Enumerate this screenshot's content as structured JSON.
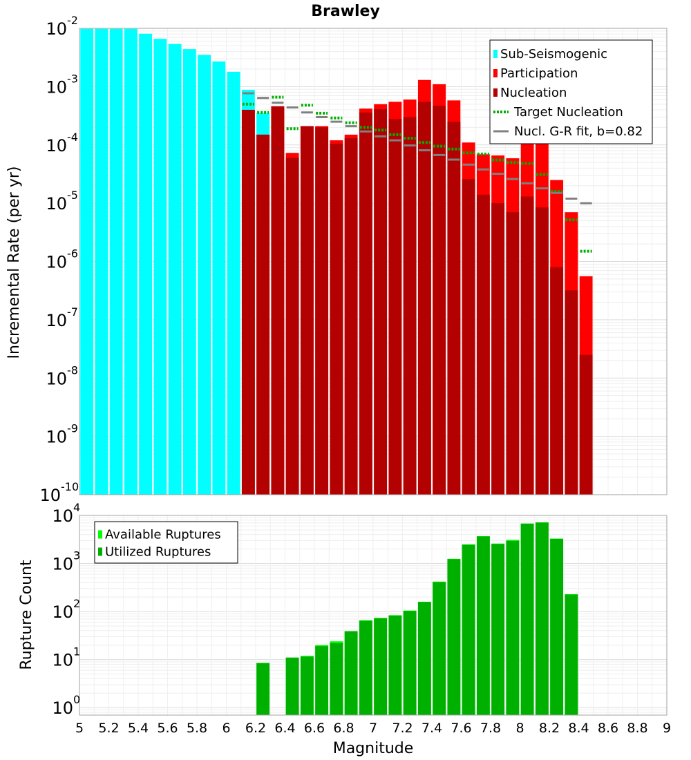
{
  "chart_data": [
    {
      "type": "bar",
      "title": "Brawley",
      "xlabel": "",
      "ylabel": "Incremental Rate (per yr)",
      "xlim": [
        5,
        9
      ],
      "ylim": [
        1e-10,
        0.01
      ],
      "yscale": "log",
      "grid": true,
      "legend_placement": "top-right",
      "x_ticks": [
        "5",
        "5.2",
        "5.4",
        "5.6",
        "5.8",
        "6",
        "6.2",
        "6.4",
        "6.6",
        "6.8",
        "7",
        "7.2",
        "7.4",
        "7.6",
        "7.8",
        "8",
        "8.2",
        "8.4",
        "8.6",
        "8.8",
        "9"
      ],
      "y_ticks": [
        {
          "base": "10",
          "exp": "-10"
        },
        {
          "base": "10",
          "exp": "-9"
        },
        {
          "base": "10",
          "exp": "-8"
        },
        {
          "base": "10",
          "exp": "-7"
        },
        {
          "base": "10",
          "exp": "-6"
        },
        {
          "base": "10",
          "exp": "-5"
        },
        {
          "base": "10",
          "exp": "-4"
        },
        {
          "base": "10",
          "exp": "-3"
        },
        {
          "base": "10",
          "exp": "-2"
        }
      ],
      "series": [
        {
          "name": "Sub-Seismogenic",
          "color": "#00ffff",
          "kind": "bar",
          "x": [
            5.05,
            5.15,
            5.25,
            5.35,
            5.45,
            5.55,
            5.65,
            5.75,
            5.85,
            5.95,
            6.05,
            6.15,
            6.25
          ],
          "values": [
            0.0098,
            0.0098,
            0.0098,
            0.0098,
            0.0081,
            0.0066,
            0.0054,
            0.0044,
            0.0035,
            0.0027,
            0.0018,
            0.00088,
            0.00035
          ]
        },
        {
          "name": "Participation",
          "color": "#ff0000",
          "kind": "bar",
          "x": [
            6.15,
            6.25,
            6.35,
            6.45,
            6.55,
            6.65,
            6.75,
            6.85,
            6.95,
            7.05,
            7.15,
            7.25,
            7.35,
            7.45,
            7.55,
            7.65,
            7.75,
            7.85,
            7.95,
            8.05,
            8.15,
            8.25,
            8.35,
            8.45
          ],
          "values": [
            0.0004,
            0.00015,
            0.00046,
            7.3e-05,
            0.00021,
            0.00021,
            0.00012,
            0.00015,
            0.00042,
            0.0005,
            0.00055,
            0.0006,
            0.0013,
            0.0011,
            0.00058,
            0.00011,
            6.9e-05,
            6.6e-05,
            5.9e-05,
            0.00014,
            0.00011,
            2.5e-05,
            7e-06,
            5.6e-07
          ]
        },
        {
          "name": "Nucleation",
          "color": "#b30000",
          "kind": "bar",
          "x": [
            6.15,
            6.25,
            6.35,
            6.45,
            6.55,
            6.65,
            6.75,
            6.85,
            6.95,
            7.05,
            7.15,
            7.25,
            7.35,
            7.45,
            7.55,
            7.65,
            7.75,
            7.85,
            7.95,
            8.05,
            8.15,
            8.25,
            8.35,
            8.45
          ],
          "values": [
            0.0004,
            0.00015,
            0.00046,
            6e-05,
            0.00021,
            0.0002,
            0.000105,
            0.00013,
            0.00036,
            0.00041,
            0.00028,
            0.0003,
            0.00055,
            0.00047,
            0.00025,
            2.6e-05,
            1.4e-05,
            1e-05,
            7e-06,
            1.3e-05,
            8.5e-06,
            8e-07,
            3.2e-07,
            2.5e-08
          ]
        },
        {
          "name": "Target Nucleation",
          "color": "#00b000",
          "kind": "dotted-step",
          "x": [
            6.15,
            6.25,
            6.35,
            6.45,
            6.55,
            6.65,
            6.75,
            6.85,
            6.95,
            7.05,
            7.15,
            7.25,
            7.35,
            7.45,
            7.55,
            7.65,
            7.75,
            7.85,
            7.95,
            8.05,
            8.15,
            8.25,
            8.35,
            8.45
          ],
          "values": [
            0.0005,
            0.00036,
            0.00066,
            0.00019,
            0.00048,
            0.00035,
            0.00029,
            0.00024,
            0.0002,
            0.00018,
            0.00015,
            0.00013,
            0.00011,
            9.5e-05,
            8.5e-05,
            7.3e-05,
            7e-05,
            5.5e-05,
            5e-05,
            4.8e-05,
            3.1e-05,
            1.6e-05,
            5.2e-06,
            1.5e-06
          ]
        },
        {
          "name": "Nucl. G-R fit, b=0.82",
          "color": "#808080",
          "kind": "step",
          "x": [
            6.15,
            6.25,
            6.35,
            6.45,
            6.55,
            6.65,
            6.75,
            6.85,
            6.95,
            7.05,
            7.15,
            7.25,
            7.35,
            7.45,
            7.55,
            7.65,
            7.75,
            7.85,
            7.95,
            8.05,
            8.15,
            8.25,
            8.35,
            8.45
          ],
          "values": [
            0.00077,
            0.00064,
            0.00053,
            0.00044,
            0.00036,
            0.0003,
            0.00025,
            0.00021,
            0.00017,
            0.00014,
            0.00012,
            9.8e-05,
            8.1e-05,
            6.7e-05,
            5.6e-05,
            4.6e-05,
            3.8e-05,
            3.2e-05,
            2.6e-05,
            2.2e-05,
            1.8e-05,
            1.5e-05,
            1.2e-05,
            1e-05
          ]
        }
      ]
    },
    {
      "type": "bar",
      "title": "",
      "xlabel": "Magnitude",
      "ylabel": "Rupture Count",
      "xlim": [
        5,
        9
      ],
      "ylim": [
        0.7,
        10000
      ],
      "yscale": "log",
      "grid": true,
      "legend_placement": "top-left",
      "x_ticks": [
        "5",
        "5.2",
        "5.4",
        "5.6",
        "5.8",
        "6",
        "6.2",
        "6.4",
        "6.6",
        "6.8",
        "7",
        "7.2",
        "7.4",
        "7.6",
        "7.8",
        "8",
        "8.2",
        "8.4",
        "8.6",
        "8.8",
        "9"
      ],
      "y_ticks": [
        {
          "base": "10",
          "exp": "0"
        },
        {
          "base": "10",
          "exp": "1"
        },
        {
          "base": "10",
          "exp": "2"
        },
        {
          "base": "10",
          "exp": "3"
        },
        {
          "base": "10",
          "exp": "4"
        }
      ],
      "series": [
        {
          "name": "Available Ruptures",
          "color": "#00ff00",
          "kind": "bar",
          "x": [
            6.25,
            6.45,
            6.55,
            6.65,
            6.75,
            6.85,
            6.95,
            7.05,
            7.15,
            7.25,
            7.35,
            7.45,
            7.55,
            7.65,
            7.75,
            7.85,
            7.95,
            8.05,
            8.15,
            8.25,
            8.35
          ],
          "values": [
            8.5,
            11,
            12,
            20,
            24,
            39,
            66,
            74,
            84,
            105,
            160,
            420,
            1250,
            2500,
            3700,
            2600,
            3100,
            6800,
            7200,
            3300,
            230
          ]
        },
        {
          "name": "Utilized Ruptures",
          "color": "#00b000",
          "kind": "bar",
          "x": [
            6.25,
            6.45,
            6.55,
            6.65,
            6.75,
            6.85,
            6.95,
            7.05,
            7.15,
            7.25,
            7.35,
            7.45,
            7.55,
            7.65,
            7.75,
            7.85,
            7.95,
            8.05,
            8.15,
            8.25,
            8.35
          ],
          "values": [
            8.5,
            11,
            11.5,
            19,
            22,
            39,
            64,
            72,
            82,
            103,
            158,
            410,
            1230,
            2450,
            3650,
            2550,
            2950,
            6700,
            7100,
            3250,
            225
          ]
        }
      ]
    }
  ]
}
